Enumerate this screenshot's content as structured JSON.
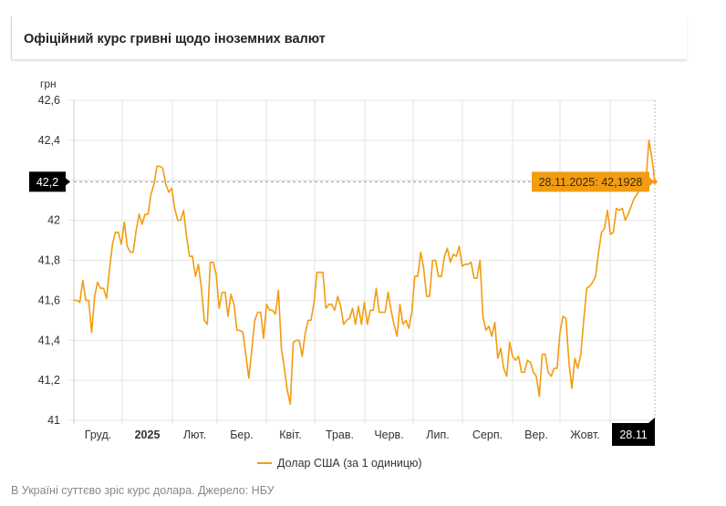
{
  "header": {
    "title": "Офіційний курс гривні щодо іноземних валют"
  },
  "footer": {
    "caption": "В Україні суттєво зріс курс долара. Джерело: НБУ"
  },
  "colors": {
    "line": "#f29c11",
    "tooltip_bg": "#f29c11",
    "marker_bg": "#000000",
    "grid": "#e3e3e3"
  },
  "chart_data": {
    "type": "line",
    "title": "Офіційний курс гривні щодо іноземних валют",
    "ylabel": "грн",
    "xlabel": "",
    "ylim": [
      41,
      42.6
    ],
    "yticks": [
      "41",
      "41,2",
      "41,4",
      "41,6",
      "41,8",
      "42",
      "42,2",
      "42,4",
      "42,6"
    ],
    "ytick_values": [
      41,
      41.2,
      41.4,
      41.6,
      41.8,
      42,
      42.2,
      42.4,
      42.6
    ],
    "xticks": [
      {
        "label": "Груд.",
        "bold": false
      },
      {
        "label": "2025",
        "bold": true
      },
      {
        "label": "Лют.",
        "bold": false
      },
      {
        "label": "Бер.",
        "bold": false
      },
      {
        "label": "Квіт.",
        "bold": false
      },
      {
        "label": "Трав.",
        "bold": false
      },
      {
        "label": "Черв.",
        "bold": false
      },
      {
        "label": "Лип.",
        "bold": false
      },
      {
        "label": "Серп.",
        "bold": false
      },
      {
        "label": "Вер.",
        "bold": false
      },
      {
        "label": "Жовт.",
        "bold": false
      }
    ],
    "grid": true,
    "legend": {
      "position": "bottom-center",
      "entries": [
        "Долар США (за 1 одиницю)"
      ]
    },
    "crosshair": {
      "y_label": "42,2",
      "x_label": "28.11",
      "tooltip": "28.11.2025: 42,1928",
      "value": 42.1928
    },
    "series": [
      {
        "name": "Долар США (за 1 одиницю)",
        "values": [
          41.6,
          41.6,
          41.59,
          41.7,
          41.6,
          41.6,
          41.44,
          41.62,
          41.69,
          41.66,
          41.66,
          41.61,
          41.75,
          41.88,
          41.94,
          41.94,
          41.88,
          41.99,
          41.87,
          41.84,
          41.84,
          41.95,
          42.03,
          41.98,
          42.03,
          42.03,
          42.13,
          42.18,
          42.27,
          42.27,
          42.26,
          42.18,
          42.14,
          42.16,
          42.06,
          42.0,
          42.0,
          42.05,
          41.92,
          41.82,
          41.82,
          41.72,
          41.78,
          41.66,
          41.5,
          41.48,
          41.79,
          41.79,
          41.73,
          41.56,
          41.64,
          41.64,
          41.52,
          41.63,
          41.58,
          41.45,
          41.45,
          41.44,
          41.33,
          41.21,
          41.35,
          41.5,
          41.54,
          41.54,
          41.41,
          41.58,
          41.55,
          41.55,
          41.53,
          41.65,
          41.36,
          41.26,
          41.15,
          41.08,
          41.39,
          41.4,
          41.4,
          41.32,
          41.43,
          41.5,
          41.5,
          41.59,
          41.74,
          41.74,
          41.74,
          41.56,
          41.58,
          41.58,
          41.55,
          41.62,
          41.57,
          41.48,
          41.5,
          41.51,
          41.56,
          41.48,
          41.57,
          41.48,
          41.59,
          41.48,
          41.55,
          41.55,
          41.66,
          41.54,
          41.54,
          41.54,
          41.64,
          41.55,
          41.48,
          41.42,
          41.58,
          41.48,
          41.5,
          41.46,
          41.54,
          41.72,
          41.72,
          41.84,
          41.76,
          41.62,
          41.62,
          41.8,
          41.8,
          41.72,
          41.72,
          41.82,
          41.86,
          41.79,
          41.83,
          41.82,
          41.87,
          41.77,
          41.78,
          41.78,
          41.79,
          41.71,
          41.71,
          41.8,
          41.52,
          41.45,
          41.47,
          41.42,
          41.49,
          41.31,
          41.36,
          41.26,
          41.22,
          41.39,
          41.32,
          41.3,
          41.32,
          41.24,
          41.24,
          41.3,
          41.29,
          41.24,
          41.22,
          41.12,
          41.33,
          41.33,
          41.24,
          41.22,
          41.26,
          41.26,
          41.44,
          41.52,
          41.51,
          41.29,
          41.16,
          41.31,
          41.26,
          41.33,
          41.5,
          41.66,
          41.67,
          41.69,
          41.72,
          41.84,
          41.94,
          41.96,
          42.05,
          41.93,
          41.94,
          42.06,
          42.05,
          42.06,
          42.0,
          42.03,
          42.07,
          42.11,
          42.13,
          42.16,
          42.2,
          42.2,
          42.4,
          42.31,
          42.1928
        ]
      }
    ]
  }
}
